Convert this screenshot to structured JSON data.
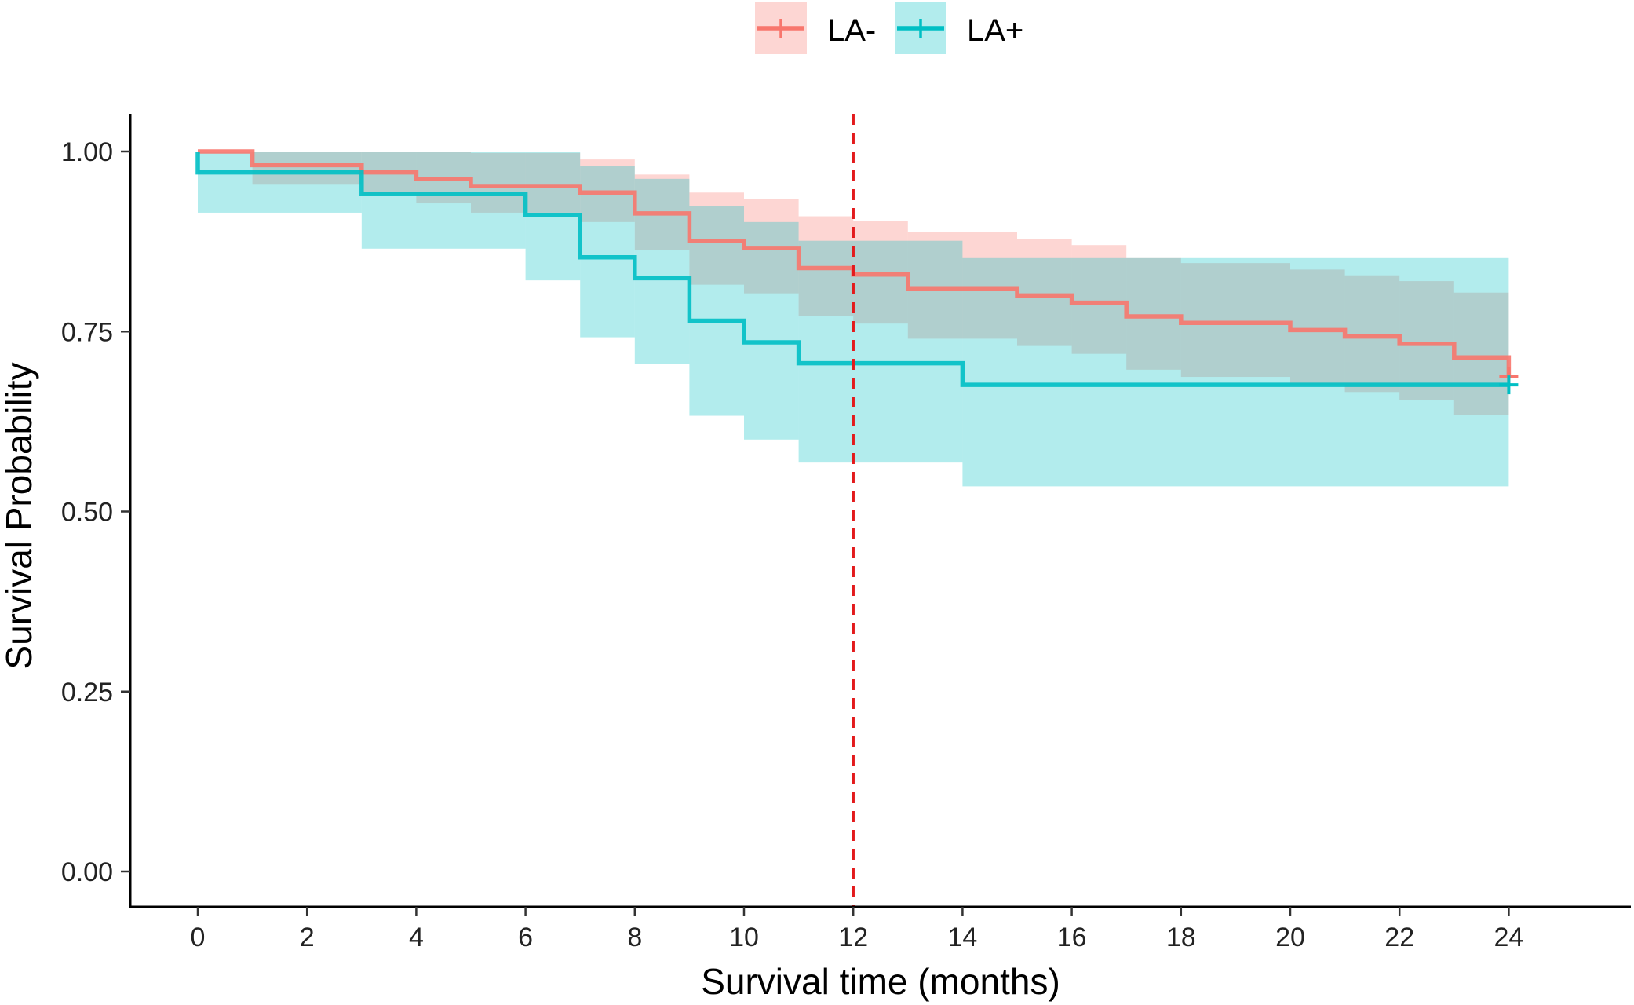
{
  "chart_data": {
    "type": "line",
    "subtype": "kaplan-meier step survival curve with confidence bands",
    "xlabel": "Survival time (months)",
    "ylabel": "Survival Probability",
    "xlim": [
      -1.25,
      26
    ],
    "ylim": [
      -0.05,
      1.05
    ],
    "x_ticks": [
      0,
      2,
      4,
      6,
      8,
      10,
      12,
      14,
      16,
      18,
      20,
      22,
      24
    ],
    "x_tick_labels": [
      "0",
      "2",
      "4",
      "6",
      "8",
      "10",
      "12",
      "14",
      "16",
      "18",
      "20",
      "22",
      "24"
    ],
    "y_ticks": [
      0,
      0.25,
      0.5,
      0.75,
      1.0
    ],
    "y_tick_labels": [
      "0.00",
      "0.25",
      "0.50",
      "0.75",
      "1.00"
    ],
    "reference_line": {
      "x": 12,
      "style": "dashed",
      "color": "#E31A1C"
    },
    "legend": {
      "position": "top",
      "entries": [
        "LA-",
        "LA+"
      ]
    },
    "series": [
      {
        "name": "LA-",
        "color": "#F8766D",
        "band_color": "#F8766D",
        "censor_time": 24,
        "censor_value": 0.687,
        "steps": [
          {
            "t": 0,
            "s": 1.0,
            "lo": 1.0,
            "hi": 1.0
          },
          {
            "t": 1,
            "s": 0.981,
            "lo": 0.955,
            "hi": 1.0
          },
          {
            "t": 3,
            "s": 0.971,
            "lo": 0.94,
            "hi": 1.0
          },
          {
            "t": 4,
            "s": 0.962,
            "lo": 0.928,
            "hi": 1.0
          },
          {
            "t": 5,
            "s": 0.952,
            "lo": 0.915,
            "hi": 0.998
          },
          {
            "t": 7,
            "s": 0.943,
            "lo": 0.902,
            "hi": 0.989
          },
          {
            "t": 8,
            "s": 0.914,
            "lo": 0.863,
            "hi": 0.968
          },
          {
            "t": 9,
            "s": 0.876,
            "lo": 0.815,
            "hi": 0.943
          },
          {
            "t": 10,
            "s": 0.866,
            "lo": 0.803,
            "hi": 0.934
          },
          {
            "t": 11,
            "s": 0.838,
            "lo": 0.771,
            "hi": 0.91
          },
          {
            "t": 12,
            "s": 0.829,
            "lo": 0.761,
            "hi": 0.903
          },
          {
            "t": 13,
            "s": 0.81,
            "lo": 0.74,
            "hi": 0.888
          },
          {
            "t": 15,
            "s": 0.8,
            "lo": 0.73,
            "hi": 0.878
          },
          {
            "t": 16,
            "s": 0.79,
            "lo": 0.719,
            "hi": 0.87
          },
          {
            "t": 17,
            "s": 0.771,
            "lo": 0.697,
            "hi": 0.853
          },
          {
            "t": 18,
            "s": 0.762,
            "lo": 0.687,
            "hi": 0.845
          },
          {
            "t": 20,
            "s": 0.752,
            "lo": 0.676,
            "hi": 0.836
          },
          {
            "t": 21,
            "s": 0.743,
            "lo": 0.666,
            "hi": 0.828
          },
          {
            "t": 22,
            "s": 0.733,
            "lo": 0.655,
            "hi": 0.82
          },
          {
            "t": 23,
            "s": 0.714,
            "lo": 0.634,
            "hi": 0.804
          },
          {
            "t": 24,
            "s": 0.687,
            "lo": 0.634,
            "hi": 0.804
          }
        ]
      },
      {
        "name": "LA+",
        "color": "#00BFC4",
        "band_color": "#00BFC4",
        "censor_time": 24,
        "censor_value": 0.676,
        "steps": [
          {
            "t": 0,
            "s": 0.971,
            "lo": 0.915,
            "hi": 1.0
          },
          {
            "t": 3,
            "s": 0.941,
            "lo": 0.865,
            "hi": 1.0
          },
          {
            "t": 6,
            "s": 0.912,
            "lo": 0.821,
            "hi": 1.0
          },
          {
            "t": 7,
            "s": 0.853,
            "lo": 0.742,
            "hi": 0.98
          },
          {
            "t": 8,
            "s": 0.824,
            "lo": 0.705,
            "hi": 0.962
          },
          {
            "t": 9,
            "s": 0.765,
            "lo": 0.633,
            "hi": 0.924
          },
          {
            "t": 10,
            "s": 0.735,
            "lo": 0.6,
            "hi": 0.902
          },
          {
            "t": 11,
            "s": 0.706,
            "lo": 0.568,
            "hi": 0.876
          },
          {
            "t": 14,
            "s": 0.676,
            "lo": 0.535,
            "hi": 0.853
          },
          {
            "t": 24,
            "s": 0.676,
            "lo": 0.535,
            "hi": 0.853
          }
        ]
      }
    ]
  }
}
